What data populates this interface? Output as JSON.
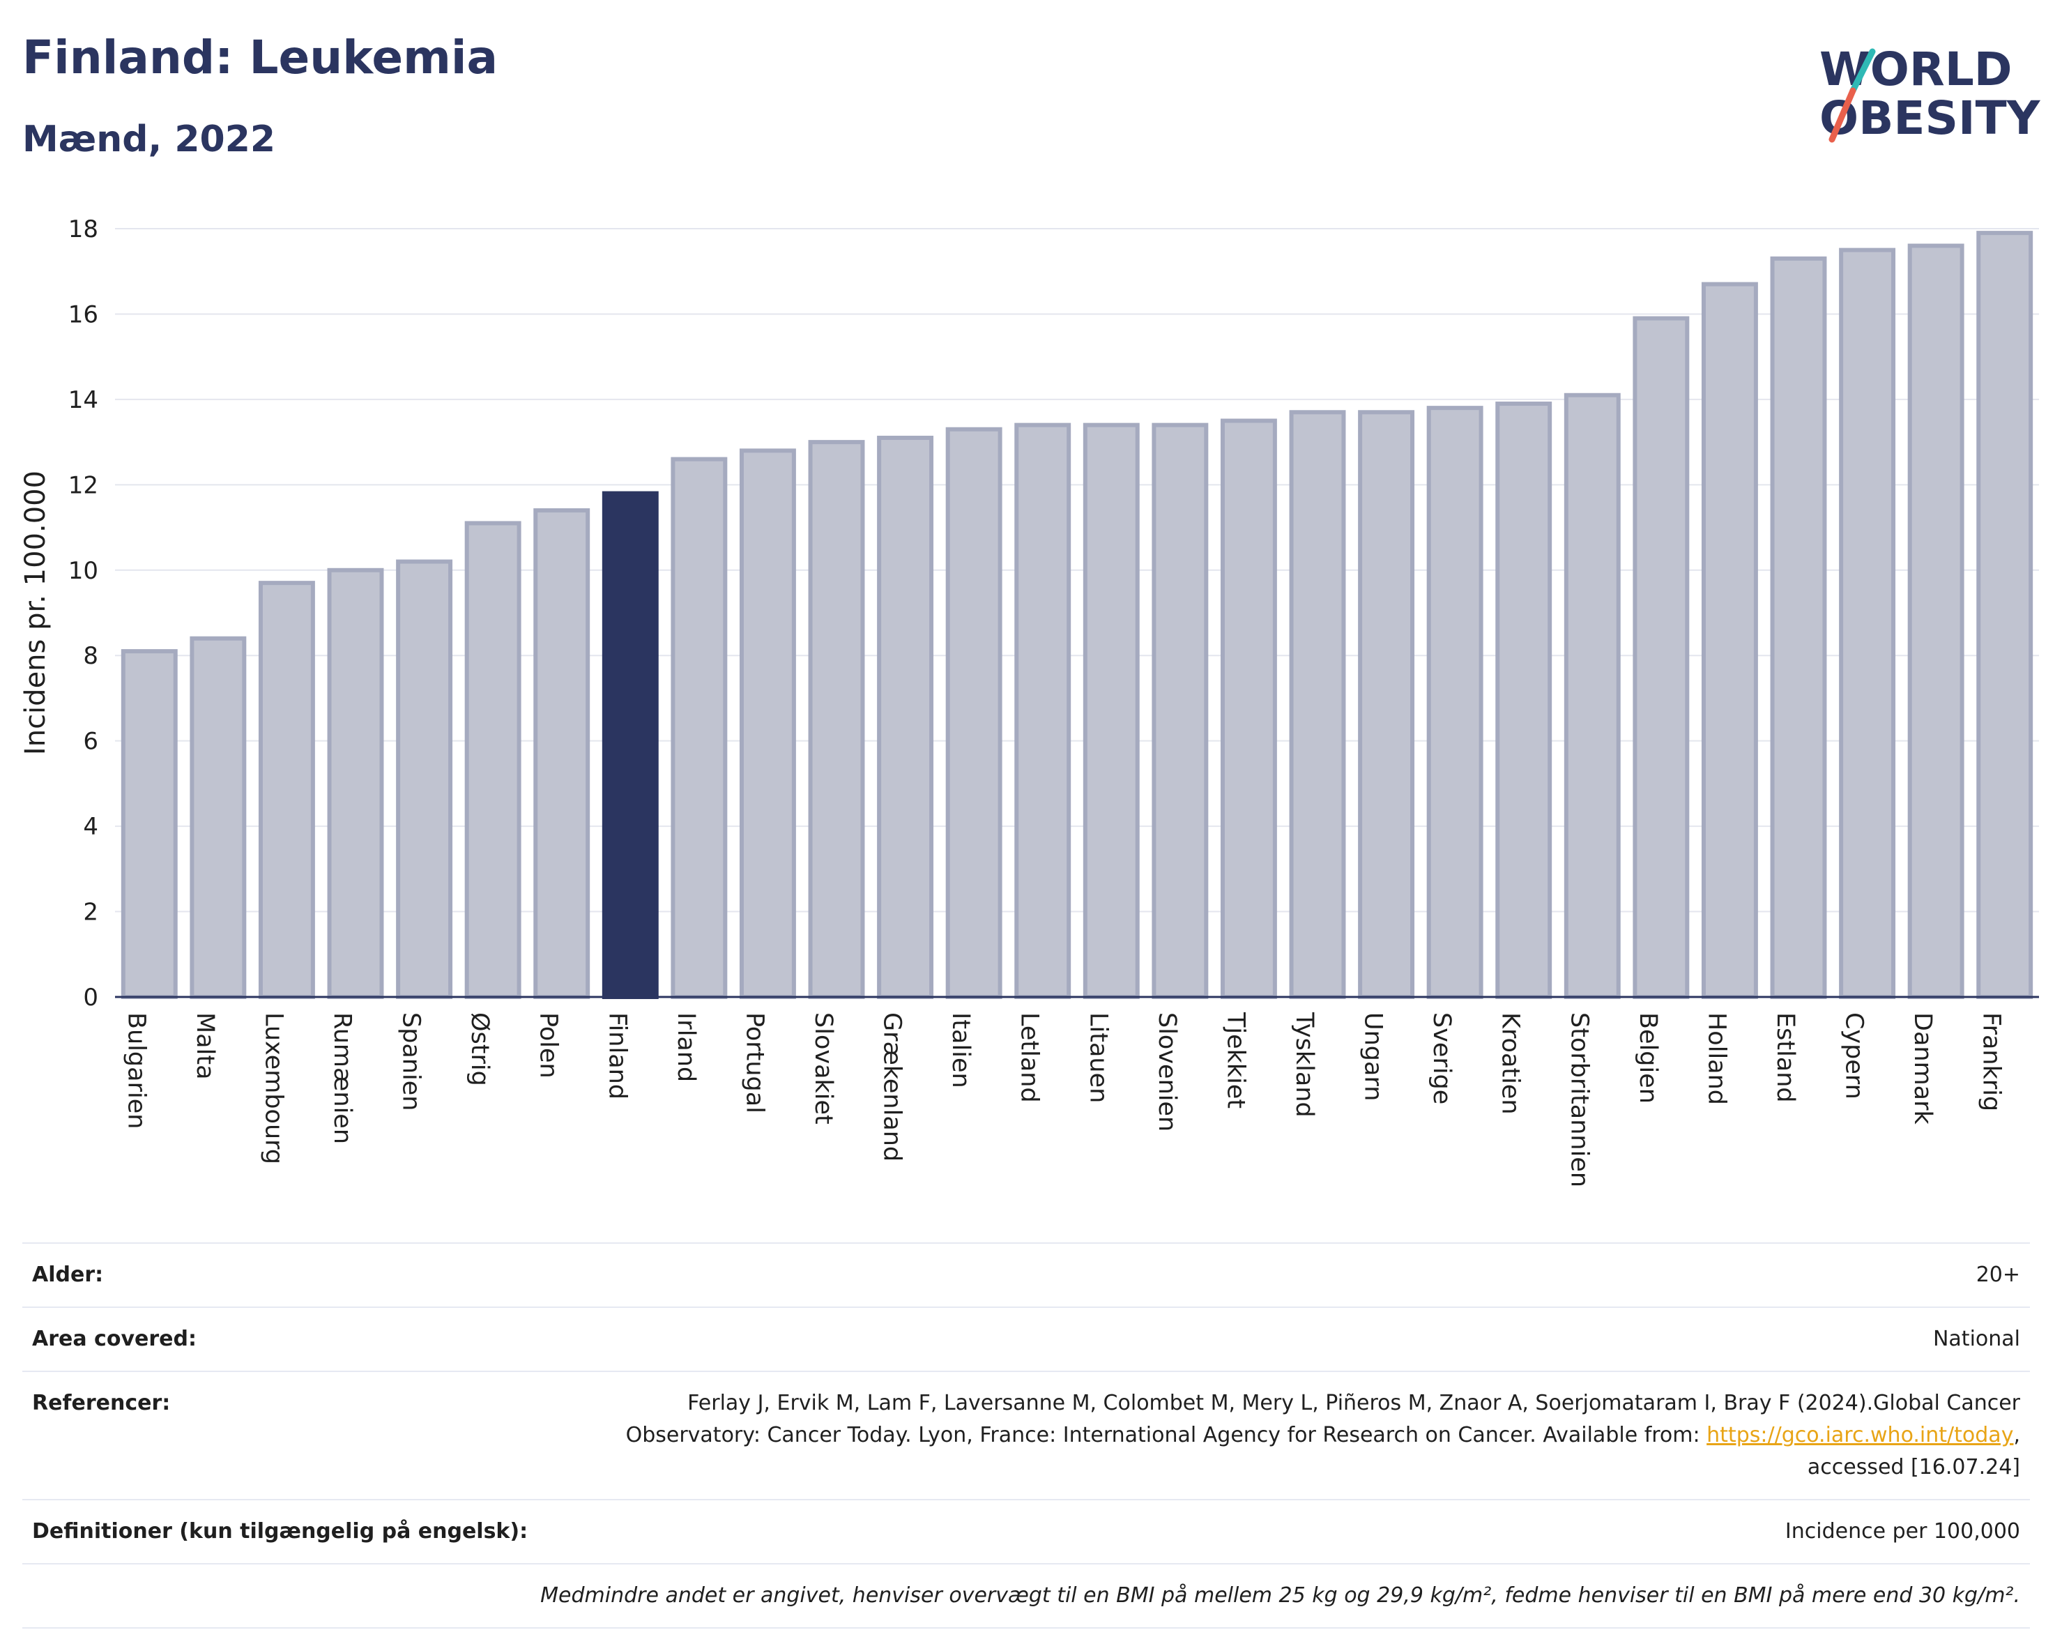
{
  "header": {
    "title": "Finland: Leukemia",
    "subtitle": "Mænd, 2022"
  },
  "logo": {
    "line1": "WORLD",
    "line2": "OBESITY",
    "accent_colors": [
      "#2fb9b5",
      "#e9604c"
    ]
  },
  "colors": {
    "highlight": "#2b3560",
    "bar_fill": "#c0c3d0",
    "bar_stroke": "#a5aabf",
    "grid": "#e4e6ee",
    "axis": "#2b3560"
  },
  "chart_data": {
    "type": "bar",
    "categories": [
      "Bulgarien",
      "Malta",
      "Luxembourg",
      "Rumænien",
      "Spanien",
      "Østrig",
      "Polen",
      "Finland",
      "Irland",
      "Portugal",
      "Slovakiet",
      "Grækenland",
      "Italien",
      "Letland",
      "Litauen",
      "Slovenien",
      "Tjekkiet",
      "Tyskland",
      "Ungarn",
      "Sverige",
      "Kroatien",
      "Storbritannien",
      "Belgien",
      "Holland",
      "Estland",
      "Cypern",
      "Danmark",
      "Frankrig"
    ],
    "values": [
      8.1,
      8.4,
      9.7,
      10.0,
      10.2,
      11.1,
      11.4,
      11.8,
      12.6,
      12.8,
      13.0,
      13.1,
      13.3,
      13.4,
      13.4,
      13.4,
      13.5,
      13.7,
      13.7,
      13.8,
      13.9,
      14.1,
      15.9,
      16.7,
      17.3,
      17.5,
      17.6,
      17.9
    ],
    "highlight": "Finland",
    "ylabel": "Incidens pr. 100.000",
    "ylim": [
      0,
      18
    ],
    "yticks": [
      "0",
      "2",
      "4",
      "6",
      "8",
      "10",
      "12",
      "14",
      "16",
      "18"
    ],
    "grid": true
  },
  "info": {
    "rows": [
      {
        "label": "Alder:",
        "value": "20+"
      },
      {
        "label": "Area covered:",
        "value": "National"
      },
      {
        "label": "Referencer:",
        "value_pre": "Ferlay J, Ervik M, Lam F, Laversanne M, Colombet M, Mery L, Piñeros M, Znaor A, Soerjomataram I, Bray F (2024).Global Cancer Observatory: Cancer Today. Lyon, France: International Agency for Research on Cancer. Available from: ",
        "link": "https://gco.iarc.who.int/today",
        "value_post": ", accessed [16.07.24]"
      },
      {
        "label": "Definitioner (kun tilgængelig på engelsk):",
        "value": "Incidence per 100,000"
      }
    ],
    "note": "Medmindre andet er angivet, henviser overvægt til en BMI på mellem 25 kg og 29,9 kg/m², fedme henviser til en BMI på mere end 30 kg/m²."
  }
}
